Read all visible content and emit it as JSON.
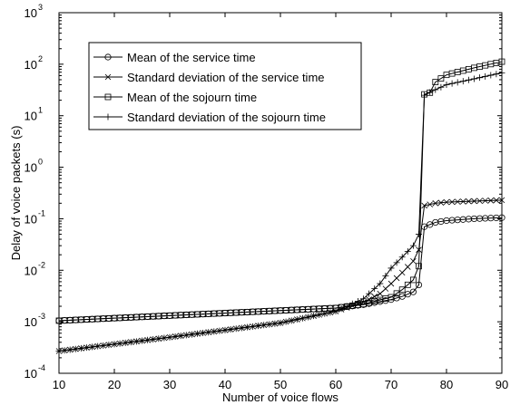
{
  "chart_data": {
    "type": "line",
    "xlabel": "Number of voice flows",
    "ylabel": "Delay of voice packets (s)",
    "xlim": [
      10,
      90
    ],
    "ylim": [
      0.0001,
      1000
    ],
    "yscale": "log",
    "grid": false,
    "legend_position": "top-left",
    "x_ticks": [
      "10",
      "20",
      "30",
      "40",
      "50",
      "60",
      "70",
      "80",
      "90"
    ],
    "y_ticks": [
      {
        "base": "10",
        "exp": "-4"
      },
      {
        "base": "10",
        "exp": "-3"
      },
      {
        "base": "10",
        "exp": "-2"
      },
      {
        "base": "10",
        "exp": "-1"
      },
      {
        "base": "10",
        "exp": "0"
      },
      {
        "base": "10",
        "exp": "1"
      },
      {
        "base": "10",
        "exp": "2"
      },
      {
        "base": "10",
        "exp": "3"
      }
    ],
    "series": [
      {
        "name": "Mean of the service time",
        "marker": "circle",
        "points": [
          [
            10,
            0.00105
          ],
          [
            60,
            0.00185
          ],
          [
            65,
            0.00215
          ],
          [
            70,
            0.0027
          ],
          [
            72,
            0.0031
          ],
          [
            74,
            0.0038
          ],
          [
            75,
            0.0052
          ],
          [
            76,
            0.07
          ],
          [
            78,
            0.085
          ],
          [
            80,
            0.092
          ],
          [
            85,
            0.1
          ],
          [
            90,
            0.105
          ]
        ]
      },
      {
        "name": "Standard deviation of the service time",
        "marker": "x",
        "points": [
          [
            10,
            0.00027
          ],
          [
            30,
            0.0005
          ],
          [
            50,
            0.00095
          ],
          [
            60,
            0.0016
          ],
          [
            65,
            0.0024
          ],
          [
            68,
            0.0035
          ],
          [
            70,
            0.0055
          ],
          [
            72,
            0.009
          ],
          [
            74,
            0.015
          ],
          [
            75,
            0.025
          ],
          [
            76,
            0.18
          ],
          [
            78,
            0.2
          ],
          [
            80,
            0.21
          ],
          [
            85,
            0.22
          ],
          [
            90,
            0.23
          ]
        ]
      },
      {
        "name": "Mean of the sojourn time",
        "marker": "square",
        "points": [
          [
            10,
            0.00105
          ],
          [
            60,
            0.00185
          ],
          [
            65,
            0.0022
          ],
          [
            70,
            0.003
          ],
          [
            72,
            0.0042
          ],
          [
            74,
            0.0065
          ],
          [
            75,
            0.012
          ],
          [
            76,
            26
          ],
          [
            77,
            28
          ],
          [
            78,
            45
          ],
          [
            80,
            62
          ],
          [
            85,
            85
          ],
          [
            90,
            112
          ]
        ]
      },
      {
        "name": "Standard deviation of the sojourn time",
        "marker": "plus",
        "points": [
          [
            10,
            0.00027
          ],
          [
            30,
            0.0005
          ],
          [
            50,
            0.00095
          ],
          [
            60,
            0.0016
          ],
          [
            65,
            0.0028
          ],
          [
            68,
            0.0055
          ],
          [
            70,
            0.011
          ],
          [
            72,
            0.018
          ],
          [
            74,
            0.03
          ],
          [
            75,
            0.05
          ],
          [
            76,
            25
          ],
          [
            78,
            32
          ],
          [
            80,
            40
          ],
          [
            85,
            52
          ],
          [
            90,
            68
          ]
        ]
      }
    ]
  }
}
